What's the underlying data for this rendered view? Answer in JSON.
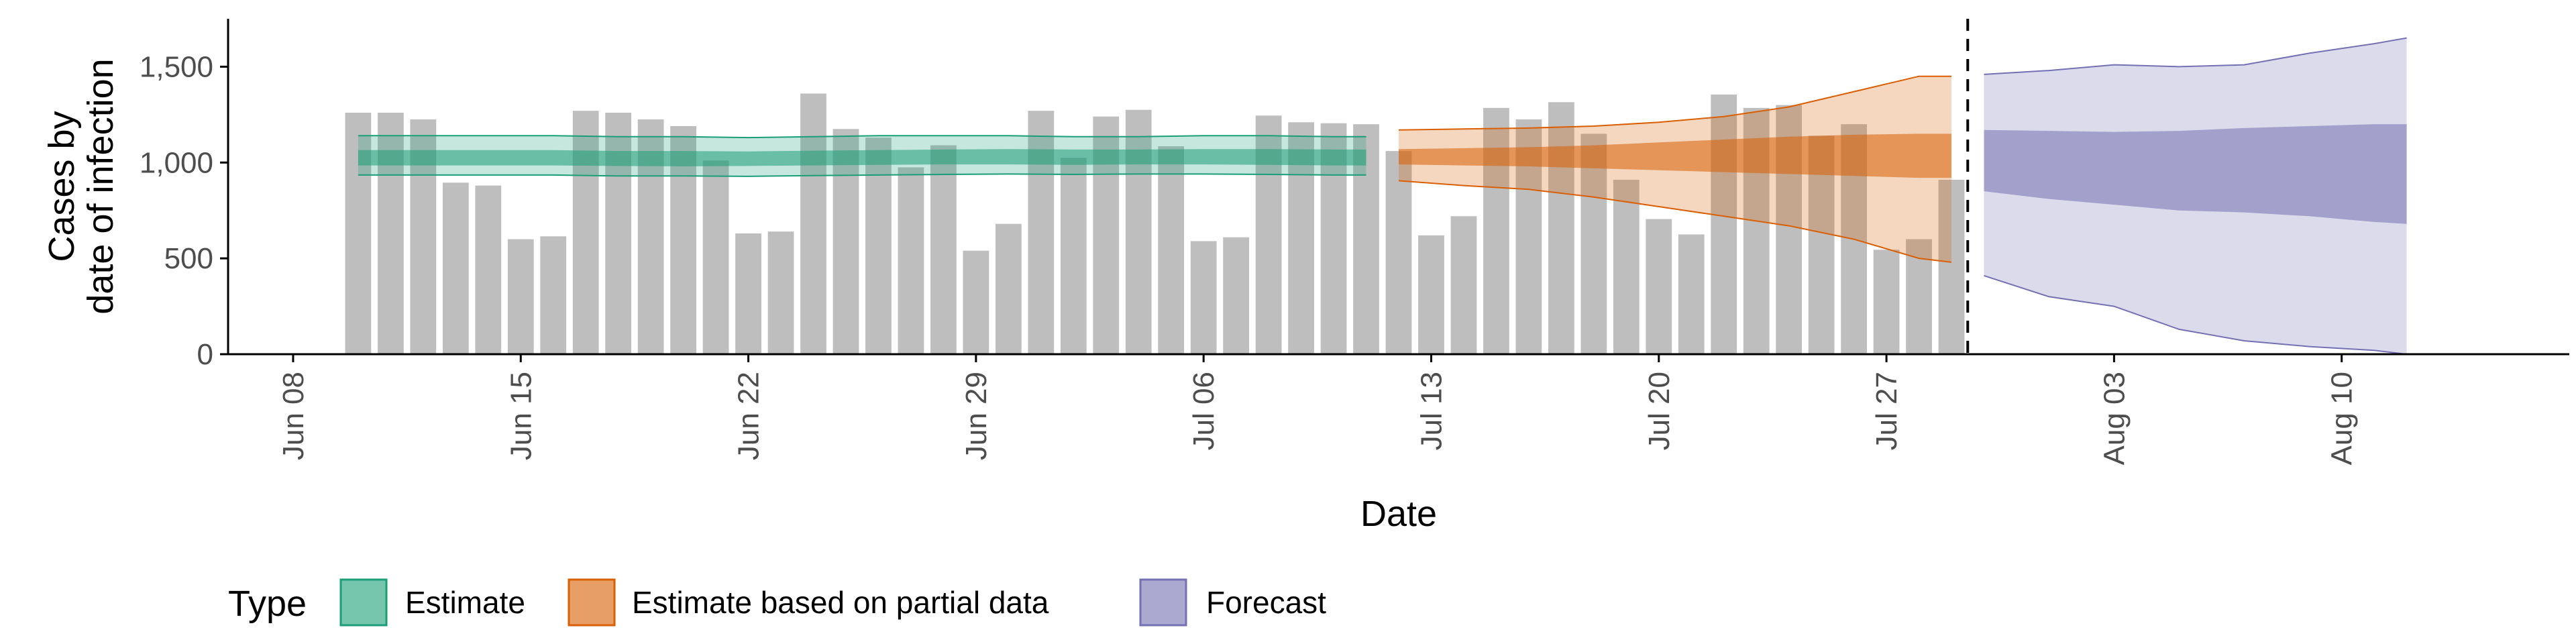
{
  "chart_data": {
    "type": "bar",
    "title": "",
    "xlabel": "Date",
    "ylabel": [
      "Cases by",
      "date of infection"
    ],
    "ylim": [
      0,
      1750
    ],
    "yticks": [
      0,
      500,
      1000,
      1500
    ],
    "ytick_labels": [
      "0",
      "500",
      "1,000",
      "1,500"
    ],
    "xlim": [
      "2020-06-06",
      "2020-08-17"
    ],
    "xticks": [
      "2020-06-08",
      "2020-06-15",
      "2020-06-22",
      "2020-06-29",
      "2020-07-06",
      "2020-07-13",
      "2020-07-20",
      "2020-07-27",
      "2020-08-03",
      "2020-08-10"
    ],
    "xtick_labels": [
      "Jun 08",
      "Jun 15",
      "Jun 22",
      "Jun 29",
      "Jul 06",
      "Jul 13",
      "Jul 20",
      "Jul 27",
      "Aug 03",
      "Aug 10"
    ],
    "grid": false,
    "vline_date": "2020-07-29",
    "bars": {
      "dates": [
        "2020-06-10",
        "2020-06-11",
        "2020-06-12",
        "2020-06-13",
        "2020-06-14",
        "2020-06-15",
        "2020-06-16",
        "2020-06-17",
        "2020-06-18",
        "2020-06-19",
        "2020-06-20",
        "2020-06-21",
        "2020-06-22",
        "2020-06-23",
        "2020-06-24",
        "2020-06-25",
        "2020-06-26",
        "2020-06-27",
        "2020-06-28",
        "2020-06-29",
        "2020-06-30",
        "2020-07-01",
        "2020-07-02",
        "2020-07-03",
        "2020-07-04",
        "2020-07-05",
        "2020-07-06",
        "2020-07-07",
        "2020-07-08",
        "2020-07-09",
        "2020-07-10",
        "2020-07-11",
        "2020-07-12",
        "2020-07-13",
        "2020-07-14",
        "2020-07-15",
        "2020-07-16",
        "2020-07-17",
        "2020-07-18",
        "2020-07-19",
        "2020-07-20",
        "2020-07-21",
        "2020-07-22",
        "2020-07-23",
        "2020-07-24",
        "2020-07-25",
        "2020-07-26",
        "2020-07-27",
        "2020-07-28",
        "2020-07-29"
      ],
      "values": [
        1260,
        1260,
        1225,
        895,
        880,
        600,
        615,
        1270,
        1260,
        1225,
        1190,
        1010,
        630,
        640,
        1360,
        1175,
        1130,
        975,
        1090,
        540,
        680,
        1270,
        1025,
        1240,
        1275,
        1085,
        590,
        610,
        1245,
        1210,
        1205,
        1200,
        1060,
        620,
        720,
        1285,
        1225,
        1315,
        1150,
        910,
        705,
        625,
        1355,
        1285,
        1300,
        1140,
        1200,
        545,
        600,
        910
      ]
    },
    "series": [
      {
        "name": "Estimate",
        "color": "#1b9e77",
        "dates": [
          "2020-06-10",
          "2020-06-12",
          "2020-06-14",
          "2020-06-16",
          "2020-06-18",
          "2020-06-20",
          "2020-06-22",
          "2020-06-24",
          "2020-06-26",
          "2020-06-28",
          "2020-06-30",
          "2020-07-02",
          "2020-07-04",
          "2020-07-06",
          "2020-07-08",
          "2020-07-10",
          "2020-07-11"
        ],
        "outer_upper": [
          1140,
          1140,
          1140,
          1140,
          1135,
          1135,
          1130,
          1135,
          1140,
          1140,
          1140,
          1135,
          1135,
          1140,
          1140,
          1135,
          1135
        ],
        "inner_upper": [
          1065,
          1065,
          1065,
          1065,
          1060,
          1060,
          1058,
          1062,
          1065,
          1068,
          1070,
          1068,
          1068,
          1070,
          1070,
          1068,
          1068
        ],
        "inner_lower": [
          985,
          985,
          985,
          985,
          982,
          980,
          982,
          985,
          988,
          990,
          990,
          988,
          990,
          990,
          988,
          985,
          985
        ],
        "outer_lower": [
          935,
          935,
          935,
          935,
          930,
          930,
          928,
          932,
          935,
          938,
          940,
          938,
          940,
          940,
          938,
          935,
          935
        ]
      },
      {
        "name": "Estimate based on partial data",
        "color": "#d95f02",
        "dates": [
          "2020-07-12",
          "2020-07-14",
          "2020-07-16",
          "2020-07-18",
          "2020-07-20",
          "2020-07-22",
          "2020-07-24",
          "2020-07-26",
          "2020-07-28",
          "2020-07-29"
        ],
        "outer_upper": [
          1170,
          1175,
          1180,
          1190,
          1210,
          1240,
          1290,
          1370,
          1450,
          1450
        ],
        "inner_upper": [
          1070,
          1075,
          1080,
          1090,
          1105,
          1120,
          1135,
          1145,
          1150,
          1150
        ],
        "inner_lower": [
          990,
          985,
          980,
          970,
          960,
          950,
          940,
          930,
          920,
          920
        ],
        "outer_lower": [
          905,
          880,
          860,
          820,
          770,
          720,
          670,
          600,
          500,
          480
        ]
      },
      {
        "name": "Forecast",
        "color": "#7570b3",
        "dates": [
          "2020-07-30",
          "2020-08-01",
          "2020-08-03",
          "2020-08-05",
          "2020-08-07",
          "2020-08-09",
          "2020-08-11",
          "2020-08-12"
        ],
        "outer_upper": [
          1460,
          1480,
          1510,
          1500,
          1510,
          1570,
          1620,
          1650
        ],
        "inner_upper": [
          1170,
          1165,
          1160,
          1165,
          1180,
          1190,
          1200,
          1200
        ],
        "inner_lower": [
          850,
          810,
          780,
          750,
          740,
          720,
          690,
          680
        ],
        "outer_lower": [
          410,
          300,
          250,
          130,
          70,
          40,
          20,
          0
        ]
      }
    ],
    "legend": {
      "title": "Type",
      "position": "bottom",
      "items": [
        "Estimate",
        "Estimate based on partial data",
        "Forecast"
      ]
    }
  }
}
